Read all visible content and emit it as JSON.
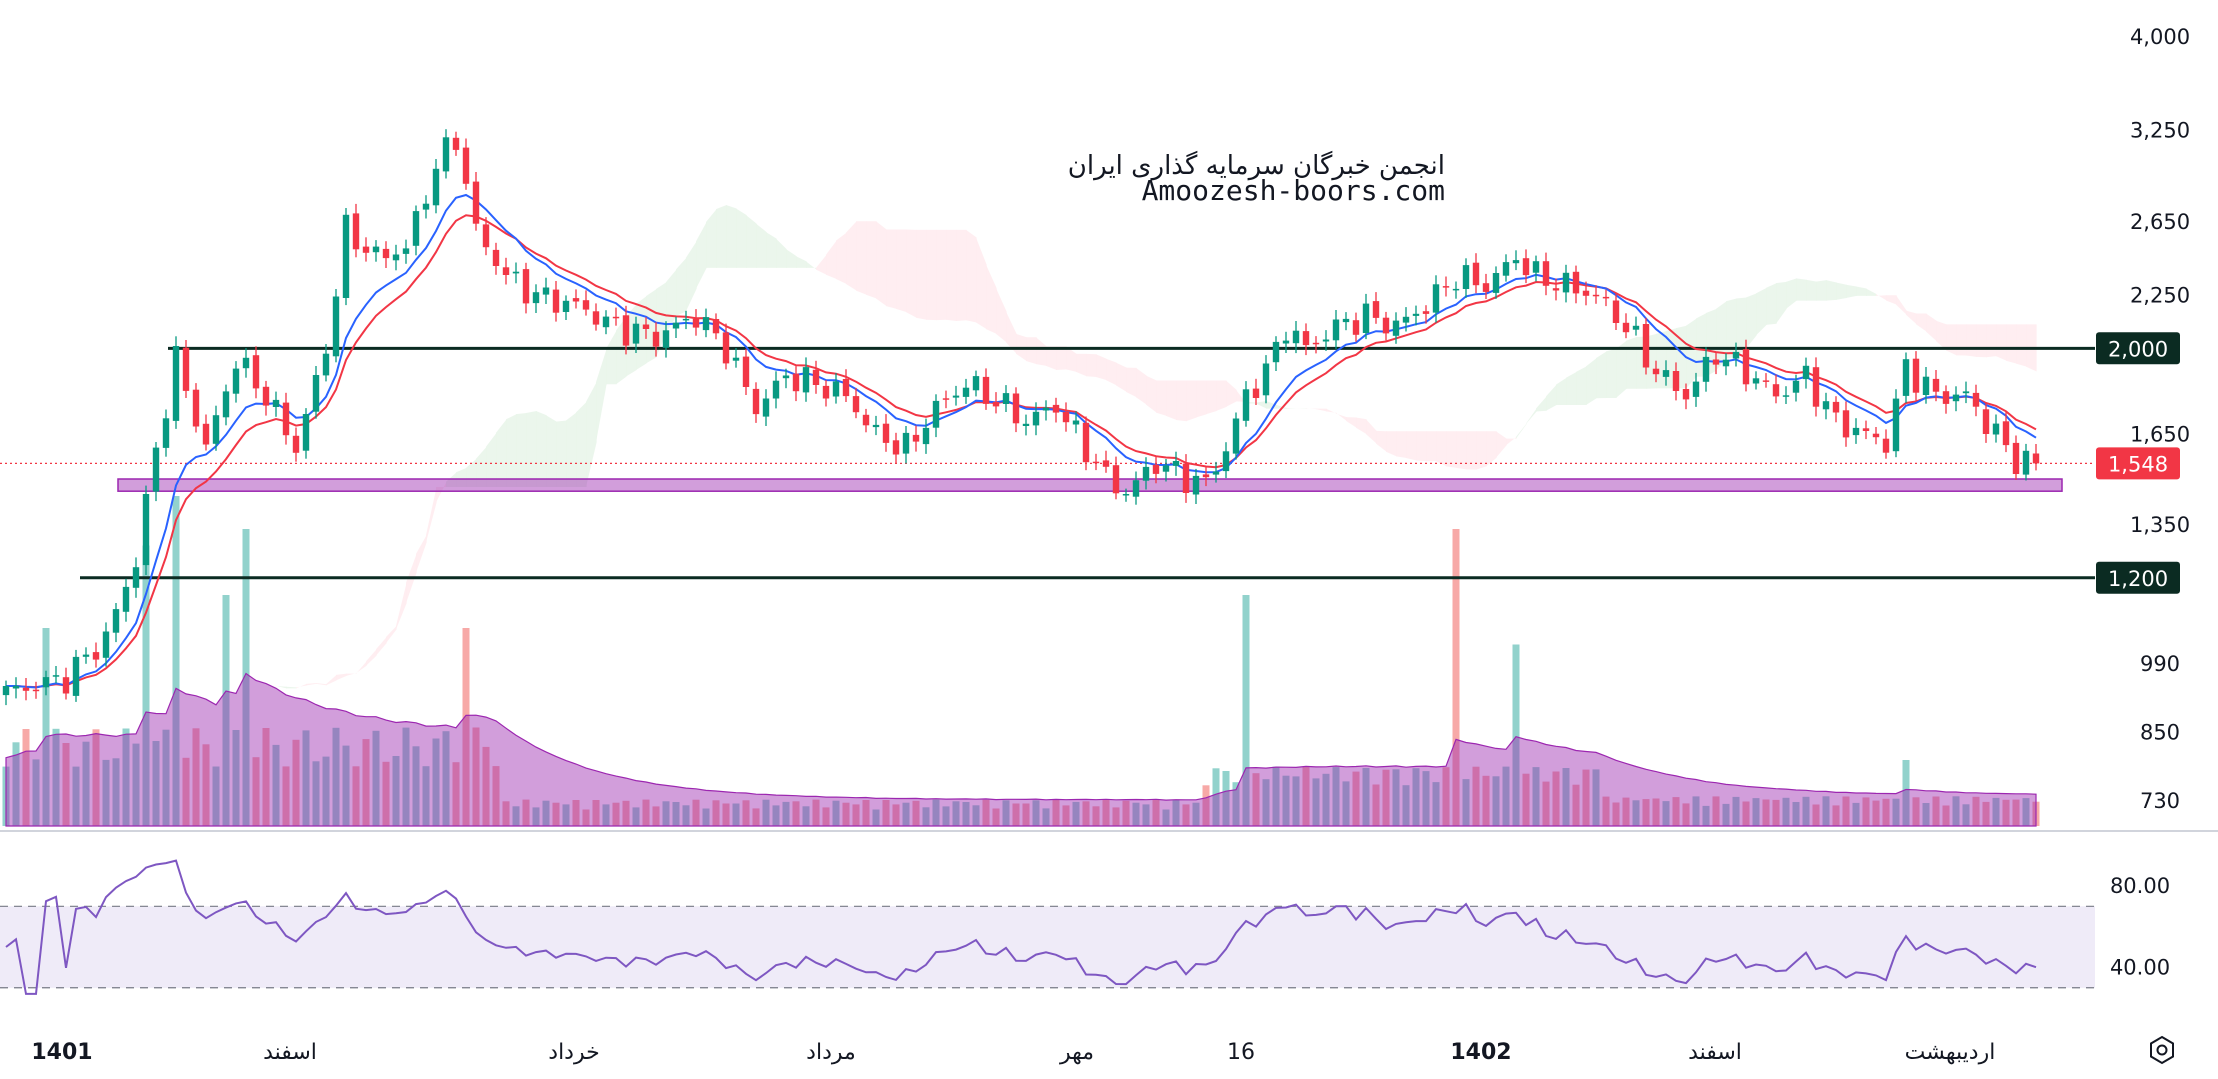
{
  "chart_data": {
    "type": "candlestick",
    "title": "",
    "watermark": {
      "line1": "انجمن خبرگان سرمایه گذاری ایران",
      "line2": "Amoozesh-boors.com"
    },
    "price_axis": {
      "scale": "log",
      "range": [
        690,
        4100
      ],
      "ticks": [
        "4,000",
        "3,250",
        "2,650",
        "2,250",
        "1,650",
        "1,350",
        "990",
        "850",
        "730"
      ],
      "tick_values": [
        4000,
        3250,
        2650,
        2250,
        1650,
        1350,
        990,
        850,
        730
      ]
    },
    "time_axis": {
      "labels": [
        {
          "text": "1401",
          "bold": true
        },
        {
          "text": "اسفند",
          "bold": false
        },
        {
          "text": "خرداد",
          "bold": false
        },
        {
          "text": "مرداد",
          "bold": false
        },
        {
          "text": "مهر",
          "bold": false
        },
        {
          "text": "16",
          "bold": false
        },
        {
          "text": "1402",
          "bold": true
        },
        {
          "text": "اسفند",
          "bold": false
        },
        {
          "text": "اردیبهشت",
          "bold": false
        }
      ]
    },
    "levels": [
      {
        "label": "2,000",
        "value": 2000,
        "color": "#0b2b22"
      },
      {
        "label": "1,200",
        "value": 1200,
        "color": "#0b2b22"
      }
    ],
    "support_zone": {
      "low": 1455,
      "high": 1495,
      "color": "#9c27b0"
    },
    "last_price": {
      "label": "1,548",
      "value": 1548,
      "color": "#f23645"
    },
    "price_series": {
      "name": "",
      "anchors": [
        [
          0,
          930
        ],
        [
          6,
          960
        ],
        [
          10,
          1050
        ],
        [
          13,
          1250
        ],
        [
          15,
          1600
        ],
        [
          17,
          1950
        ],
        [
          20,
          1600
        ],
        [
          23,
          1950
        ],
        [
          26,
          1800
        ],
        [
          29,
          1600
        ],
        [
          32,
          2000
        ],
        [
          34,
          2600
        ],
        [
          37,
          2450
        ],
        [
          40,
          2500
        ],
        [
          43,
          3000
        ],
        [
          45,
          3200
        ],
        [
          47,
          2600
        ],
        [
          50,
          2350
        ],
        [
          53,
          2250
        ],
        [
          57,
          2200
        ],
        [
          61,
          2100
        ],
        [
          65,
          2050
        ],
        [
          69,
          2150
        ],
        [
          72,
          2000
        ],
        [
          75,
          1750
        ],
        [
          78,
          1880
        ],
        [
          81,
          1850
        ],
        [
          84,
          1800
        ],
        [
          87,
          1650
        ],
        [
          90,
          1600
        ],
        [
          93,
          1750
        ],
        [
          96,
          1850
        ],
        [
          99,
          1780
        ],
        [
          102,
          1700
        ],
        [
          105,
          1760
        ],
        [
          108,
          1600
        ],
        [
          110,
          1500
        ],
        [
          112,
          1450
        ],
        [
          115,
          1550
        ],
        [
          118,
          1500
        ],
        [
          120,
          1480
        ],
        [
          122,
          1600
        ],
        [
          124,
          1800
        ],
        [
          126,
          1900
        ],
        [
          128,
          2100
        ],
        [
          130,
          2000
        ],
        [
          133,
          2100
        ],
        [
          136,
          2150
        ],
        [
          139,
          2100
        ],
        [
          142,
          2200
        ],
        [
          145,
          2350
        ],
        [
          148,
          2300
        ],
        [
          151,
          2450
        ],
        [
          153,
          2350
        ],
        [
          156,
          2300
        ],
        [
          159,
          2250
        ],
        [
          162,
          2100
        ],
        [
          165,
          1900
        ],
        [
          168,
          1800
        ],
        [
          171,
          1980
        ],
        [
          174,
          1900
        ],
        [
          177,
          1800
        ],
        [
          180,
          1880
        ],
        [
          183,
          1700
        ],
        [
          186,
          1650
        ],
        [
          188,
          1620
        ],
        [
          190,
          1920
        ],
        [
          193,
          1800
        ],
        [
          196,
          1800
        ],
        [
          199,
          1650
        ],
        [
          201,
          1560
        ],
        [
          203,
          1548
        ]
      ]
    },
    "ema_fast": {
      "name": "",
      "color": "#2962ff"
    },
    "ema_slow": {
      "name": "",
      "color": "#f23645"
    },
    "ichimoku_cloud": {
      "bullish_color": "#e8f5e9",
      "bearish_color": "#ffebee"
    },
    "volume": {
      "spikes": [
        [
          4,
          0.6
        ],
        [
          14,
          0.85
        ],
        [
          17,
          1.0
        ],
        [
          22,
          0.7
        ],
        [
          24,
          0.9
        ],
        [
          46,
          0.6
        ],
        [
          124,
          0.7
        ],
        [
          145,
          0.9
        ],
        [
          151,
          0.55
        ],
        [
          190,
          0.2
        ]
      ]
    },
    "rsi": {
      "ticks": [
        "80.00",
        "40.00"
      ],
      "tick_values": [
        80,
        40
      ],
      "range": [
        24,
        105
      ],
      "band": [
        30,
        70
      ],
      "color": "#7e57c2"
    }
  }
}
